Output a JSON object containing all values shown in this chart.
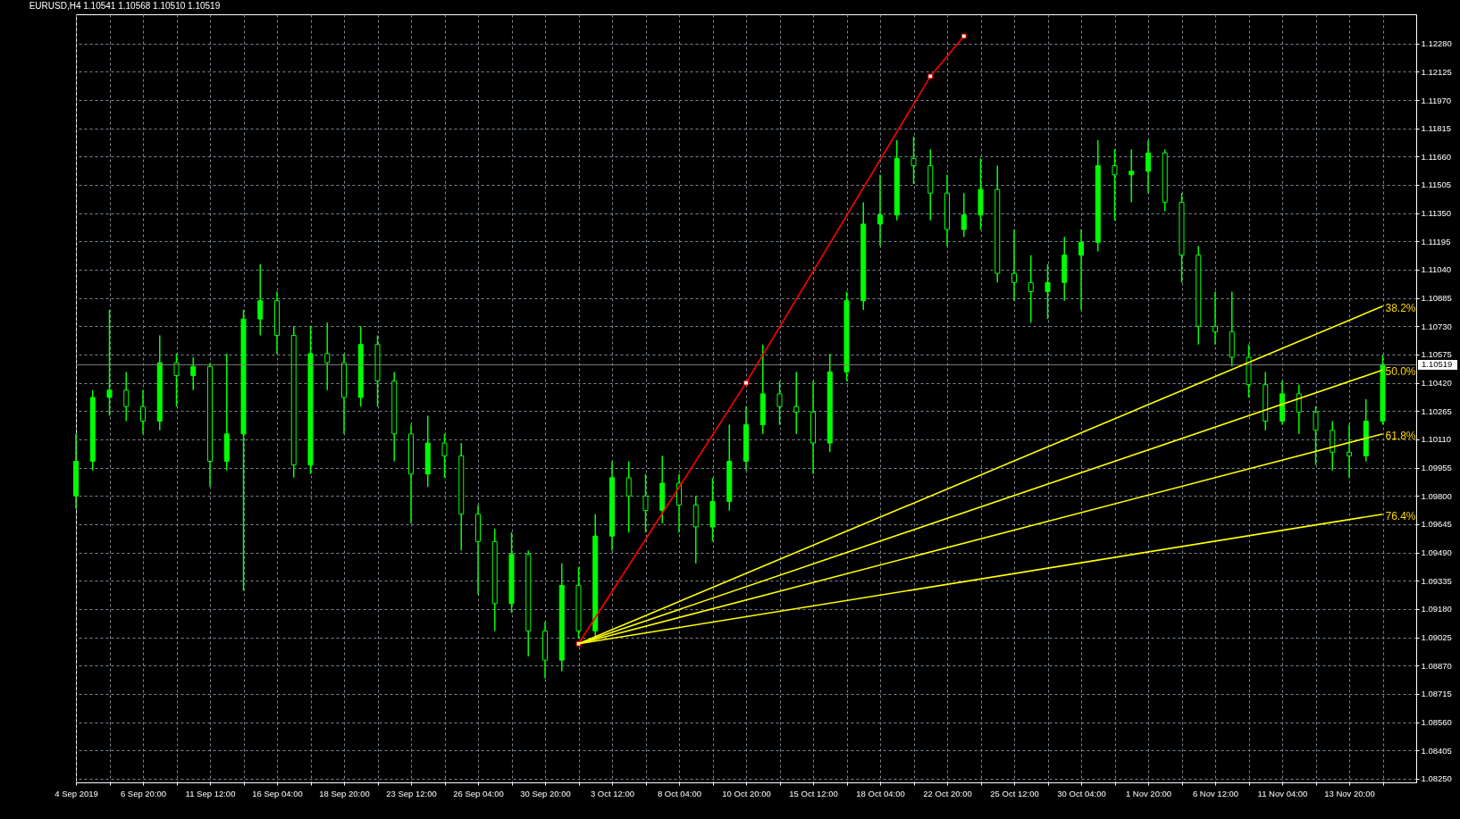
{
  "chart_data": {
    "type": "candlestick",
    "title": "EURUSD,H4  1.10541 1.10568 1.10510 1.10519",
    "categories": [
      "4 Sep 2019",
      null,
      null,
      null,
      "6 Sep 20:00",
      null,
      null,
      null,
      "11 Sep 12:00",
      null,
      null,
      null,
      "16 Sep 04:00",
      null,
      null,
      null,
      "18 Sep 20:00",
      null,
      null,
      null,
      "23 Sep 12:00",
      null,
      null,
      null,
      "26 Sep 04:00",
      null,
      null,
      null,
      "30 Sep 20:00",
      null,
      null,
      null,
      "3 Oct 12:00",
      null,
      null,
      null,
      "8 Oct 04:00",
      null,
      null,
      null,
      "10 Oct 20:00",
      null,
      null,
      null,
      "15 Oct 12:00",
      null,
      null,
      null,
      "18 Oct 04:00",
      null,
      null,
      null,
      "22 Oct 20:00",
      null,
      null,
      null,
      "25 Oct 12:00",
      null,
      null,
      null,
      "30 Oct 04:00",
      null,
      null,
      null,
      "1 Nov 20:00",
      null,
      null,
      null,
      "6 Nov 12:00",
      null,
      null,
      null,
      "11 Nov 04:00",
      null,
      null,
      null,
      "13 Nov 20:00",
      null,
      null
    ],
    "ohlc": [
      [
        1.098,
        1.1014,
        1.0973,
        1.0999
      ],
      [
        1.0999,
        1.1038,
        1.0994,
        1.1034
      ],
      [
        1.1034,
        1.1082,
        1.1024,
        1.1038
      ],
      [
        1.1038,
        1.1048,
        1.1021,
        1.1029
      ],
      [
        1.1029,
        1.1038,
        1.1014,
        1.1021
      ],
      [
        1.1021,
        1.1068,
        1.1016,
        1.1053
      ],
      [
        1.1053,
        1.1058,
        1.1029,
        1.1046
      ],
      [
        1.1046,
        1.1056,
        1.1038,
        1.1051
      ],
      [
        1.1051,
        1.1053,
        1.0985,
        1.0999
      ],
      [
        1.0999,
        1.1058,
        1.0994,
        1.1014
      ],
      [
        1.1014,
        1.1082,
        1.0928,
        1.1077
      ],
      [
        1.1077,
        1.1107,
        1.1068,
        1.1087
      ],
      [
        1.1087,
        1.1092,
        1.1058,
        1.1068
      ],
      [
        1.1068,
        1.1073,
        1.099,
        1.0997
      ],
      [
        1.0997,
        1.1073,
        1.0992,
        1.1058
      ],
      [
        1.1058,
        1.1075,
        1.1038,
        1.1053
      ],
      [
        1.1053,
        1.1058,
        1.1014,
        1.1034
      ],
      [
        1.1034,
        1.1073,
        1.1029,
        1.1063
      ],
      [
        1.1063,
        1.1068,
        1.1029,
        1.1043
      ],
      [
        1.1043,
        1.1048,
        1.0999,
        1.1014
      ],
      [
        1.1014,
        1.1019,
        1.0965,
        1.0992
      ],
      [
        1.0992,
        1.1024,
        1.0985,
        1.1009
      ],
      [
        1.1009,
        1.1014,
        1.099,
        1.1002
      ],
      [
        1.1002,
        1.1009,
        1.095,
        1.097
      ],
      [
        1.097,
        1.0975,
        1.0926,
        1.0955
      ],
      [
        1.0955,
        1.0962,
        1.0906,
        1.0921
      ],
      [
        1.0921,
        1.096,
        1.0916,
        1.0948
      ],
      [
        1.0948,
        1.095,
        1.0892,
        1.0906
      ],
      [
        1.0906,
        1.0911,
        1.088,
        1.089
      ],
      [
        1.089,
        1.0943,
        1.0884,
        1.0931
      ],
      [
        1.0931,
        1.0941,
        1.0902,
        1.0906
      ],
      [
        1.0906,
        1.097,
        1.0902,
        1.0958
      ],
      [
        1.0958,
        1.0999,
        1.095,
        1.099
      ],
      [
        1.099,
        1.0999,
        1.096,
        1.098
      ],
      [
        1.098,
        1.0992,
        1.096,
        1.0972
      ],
      [
        1.0972,
        1.1002,
        1.0965,
        1.0987
      ],
      [
        1.0987,
        1.0992,
        1.096,
        1.0975
      ],
      [
        1.0975,
        1.098,
        1.0943,
        1.0963
      ],
      [
        1.0963,
        1.099,
        1.0955,
        1.0977
      ],
      [
        1.0977,
        1.1019,
        1.0972,
        1.0999
      ],
      [
        1.0999,
        1.1029,
        1.0994,
        1.1019
      ],
      [
        1.1019,
        1.1063,
        1.1014,
        1.1036
      ],
      [
        1.1036,
        1.1043,
        1.1019,
        1.1029
      ],
      [
        1.1029,
        1.1048,
        1.1014,
        1.1026
      ],
      [
        1.1026,
        1.1043,
        1.0992,
        1.1009
      ],
      [
        1.1009,
        1.1058,
        1.1004,
        1.1048
      ],
      [
        1.1048,
        1.1092,
        1.1043,
        1.1087
      ],
      [
        1.1087,
        1.1141,
        1.1082,
        1.1129
      ],
      [
        1.1129,
        1.1156,
        1.1117,
        1.1134
      ],
      [
        1.1134,
        1.1175,
        1.1131,
        1.1165
      ],
      [
        1.1165,
        1.1177,
        1.1151,
        1.1161
      ],
      [
        1.1161,
        1.117,
        1.1131,
        1.1146
      ],
      [
        1.1146,
        1.1156,
        1.1117,
        1.1126
      ],
      [
        1.1126,
        1.1146,
        1.1122,
        1.1134
      ],
      [
        1.1134,
        1.1165,
        1.1126,
        1.1148
      ],
      [
        1.1148,
        1.1161,
        1.1097,
        1.1102
      ],
      [
        1.1102,
        1.1126,
        1.1087,
        1.1097
      ],
      [
        1.1097,
        1.1112,
        1.1075,
        1.1092
      ],
      [
        1.1092,
        1.1107,
        1.1077,
        1.1097
      ],
      [
        1.1097,
        1.1122,
        1.1087,
        1.1112
      ],
      [
        1.1112,
        1.1126,
        1.1082,
        1.1119
      ],
      [
        1.1119,
        1.1175,
        1.1114,
        1.1161
      ],
      [
        1.1161,
        1.117,
        1.1131,
        1.1156
      ],
      [
        1.1156,
        1.117,
        1.1141,
        1.1158
      ],
      [
        1.1158,
        1.1175,
        1.1146,
        1.1168
      ],
      [
        1.1168,
        1.117,
        1.1136,
        1.1141
      ],
      [
        1.1141,
        1.1146,
        1.1097,
        1.1112
      ],
      [
        1.1112,
        1.1117,
        1.1063,
        1.1073
      ],
      [
        1.1073,
        1.1092,
        1.1063,
        1.107
      ],
      [
        1.107,
        1.1092,
        1.1051,
        1.1056
      ],
      [
        1.1056,
        1.1063,
        1.1034,
        1.1041
      ],
      [
        1.1041,
        1.1048,
        1.1016,
        1.1021
      ],
      [
        1.1021,
        1.1043,
        1.1019,
        1.1036
      ],
      [
        1.1036,
        1.1041,
        1.1014,
        1.1026
      ],
      [
        1.1026,
        1.1029,
        1.0997,
        1.1016
      ],
      [
        1.1016,
        1.1021,
        1.0994,
        1.1004
      ],
      [
        1.1004,
        1.1019,
        1.099,
        1.1002
      ],
      [
        1.1002,
        1.1033,
        1.0999,
        1.1021
      ],
      [
        1.1021,
        1.1057,
        1.1019,
        1.1052
      ]
    ],
    "color": "#00ff00",
    "series": [
      {
        "type": "line",
        "color": "#ff0000",
        "marker": "square",
        "values": [
          null,
          null,
          null,
          null,
          null,
          null,
          null,
          null,
          null,
          null,
          null,
          null,
          null,
          null,
          null,
          null,
          null,
          null,
          null,
          null,
          null,
          null,
          null,
          null,
          null,
          null,
          null,
          null,
          null,
          null,
          1.0899,
          null,
          null,
          null,
          null,
          null,
          null,
          null,
          null,
          null,
          1.1042,
          null,
          null,
          null,
          null,
          null,
          null,
          null,
          null,
          null,
          null,
          1.121,
          null,
          1.1232,
          null,
          null,
          null,
          null,
          null,
          null,
          null,
          null,
          null,
          null,
          null,
          null,
          null,
          null,
          null,
          null,
          null,
          null,
          null,
          null,
          null,
          null,
          null,
          null,
          null
        ]
      },
      {
        "type": "line",
        "color": "#ffff00",
        "values": [
          null,
          null,
          null,
          null,
          null,
          null,
          null,
          null,
          null,
          null,
          null,
          null,
          null,
          null,
          null,
          null,
          null,
          null,
          null,
          null,
          null,
          null,
          null,
          null,
          null,
          null,
          null,
          null,
          null,
          null,
          1.0899,
          null,
          null,
          null,
          null,
          null,
          null,
          null,
          null,
          null,
          null,
          null,
          null,
          null,
          null,
          null,
          null,
          null,
          null,
          null,
          null,
          null,
          null,
          null,
          null,
          null,
          null,
          null,
          null,
          null,
          null,
          null,
          null,
          null,
          null,
          null,
          null,
          null,
          null,
          null,
          null,
          null,
          null,
          null,
          null,
          null,
          null,
          null,
          1.1084
        ]
      },
      {
        "type": "line",
        "color": "#ffff00",
        "values": [
          null,
          null,
          null,
          null,
          null,
          null,
          null,
          null,
          null,
          null,
          null,
          null,
          null,
          null,
          null,
          null,
          null,
          null,
          null,
          null,
          null,
          null,
          null,
          null,
          null,
          null,
          null,
          null,
          null,
          null,
          1.0899,
          null,
          null,
          null,
          null,
          null,
          null,
          null,
          null,
          null,
          null,
          null,
          null,
          null,
          null,
          null,
          null,
          null,
          null,
          null,
          null,
          null,
          null,
          null,
          null,
          null,
          null,
          null,
          null,
          null,
          null,
          null,
          null,
          null,
          null,
          null,
          null,
          null,
          null,
          null,
          null,
          null,
          null,
          null,
          null,
          null,
          null,
          null,
          1.1049
        ]
      },
      {
        "type": "line",
        "color": "#ffff00",
        "values": [
          null,
          null,
          null,
          null,
          null,
          null,
          null,
          null,
          null,
          null,
          null,
          null,
          null,
          null,
          null,
          null,
          null,
          null,
          null,
          null,
          null,
          null,
          null,
          null,
          null,
          null,
          null,
          null,
          null,
          null,
          1.0899,
          null,
          null,
          null,
          null,
          null,
          null,
          null,
          null,
          null,
          null,
          null,
          null,
          null,
          null,
          null,
          null,
          null,
          null,
          null,
          null,
          null,
          null,
          null,
          null,
          null,
          null,
          null,
          null,
          null,
          null,
          null,
          null,
          null,
          null,
          null,
          null,
          null,
          null,
          null,
          null,
          null,
          null,
          null,
          null,
          null,
          null,
          null,
          1.1014
        ]
      },
      {
        "type": "line",
        "color": "#ffff00",
        "values": [
          null,
          null,
          null,
          null,
          null,
          null,
          null,
          null,
          null,
          null,
          null,
          null,
          null,
          null,
          null,
          null,
          null,
          null,
          null,
          null,
          null,
          null,
          null,
          null,
          null,
          null,
          null,
          null,
          null,
          null,
          1.0899,
          null,
          null,
          null,
          null,
          null,
          null,
          null,
          null,
          null,
          null,
          null,
          null,
          null,
          null,
          null,
          null,
          null,
          null,
          null,
          null,
          null,
          null,
          null,
          null,
          null,
          null,
          null,
          null,
          null,
          null,
          null,
          null,
          null,
          null,
          null,
          null,
          null,
          null,
          null,
          null,
          null,
          null,
          null,
          null,
          null,
          null,
          null,
          1.097
        ]
      }
    ],
    "annotations": [
      "38.2%",
      "50.0%",
      "61.8%",
      "76.4%"
    ],
    "ref_lines": [
      {
        "axis": "y",
        "value": 1.10519,
        "label": "1.10519",
        "color": "#808080"
      }
    ],
    "ylim": [
      1.0823,
      1.1244
    ],
    "yticks": [
      {
        "value": 1.0825,
        "label": "1.08250"
      },
      {
        "value": 1.08405,
        "label": "1.08405"
      },
      {
        "value": 1.0856,
        "label": "1.08560"
      },
      {
        "value": 1.08715,
        "label": "1.08715"
      },
      {
        "value": 1.0887,
        "label": "1.08870"
      },
      {
        "value": 1.09025,
        "label": "1.09025"
      },
      {
        "value": 1.0918,
        "label": "1.09180"
      },
      {
        "value": 1.09335,
        "label": "1.09335"
      },
      {
        "value": 1.0949,
        "label": "1.09490"
      },
      {
        "value": 1.09645,
        "label": "1.09645"
      },
      {
        "value": 1.098,
        "label": "1.09800"
      },
      {
        "value": 1.09955,
        "label": "1.09955"
      },
      {
        "value": 1.1011,
        "label": "1.10110"
      },
      {
        "value": 1.10265,
        "label": "1.10265"
      },
      {
        "value": 1.1042,
        "label": "1.10420"
      },
      {
        "value": 1.10575,
        "label": "1.10575"
      },
      {
        "value": 1.1073,
        "label": "1.10730"
      },
      {
        "value": 1.10885,
        "label": "1.10885"
      },
      {
        "value": 1.1104,
        "label": "1.11040"
      },
      {
        "value": 1.11195,
        "label": "1.11195"
      },
      {
        "value": 1.1135,
        "label": "1.11350"
      },
      {
        "value": 1.11505,
        "label": "1.11505"
      },
      {
        "value": 1.1166,
        "label": "1.11660"
      },
      {
        "value": 1.11815,
        "label": "1.11815"
      },
      {
        "value": 1.1197,
        "label": "1.11970"
      },
      {
        "value": 1.12125,
        "label": "1.12125"
      },
      {
        "value": 1.1228,
        "label": "1.12280"
      }
    ],
    "grid": true
  }
}
